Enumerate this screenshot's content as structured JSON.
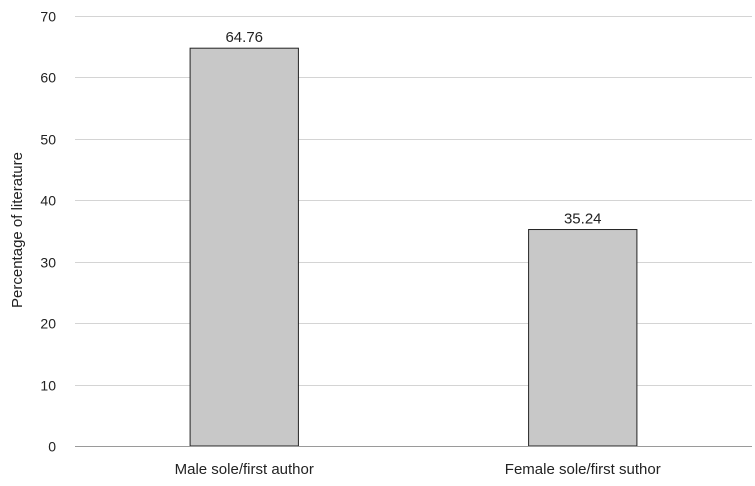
{
  "chart_data": {
    "type": "bar",
    "title": "",
    "xlabel": "",
    "ylabel": "Percentage of literature",
    "categories": [
      "Male sole/first author",
      "Female sole/first suthor"
    ],
    "values": [
      64.76,
      35.24
    ],
    "data_labels": [
      "64.76",
      "35.24"
    ],
    "ylim": [
      0,
      70
    ],
    "yticks": [
      0,
      10,
      20,
      30,
      40,
      50,
      60,
      70
    ],
    "grid": true,
    "legend": "none",
    "colors": {
      "bar_fill": "#c8c8c8",
      "bar_stroke": "#222222",
      "grid": "#d4d4d4",
      "axis": "#9a9a9a"
    }
  }
}
